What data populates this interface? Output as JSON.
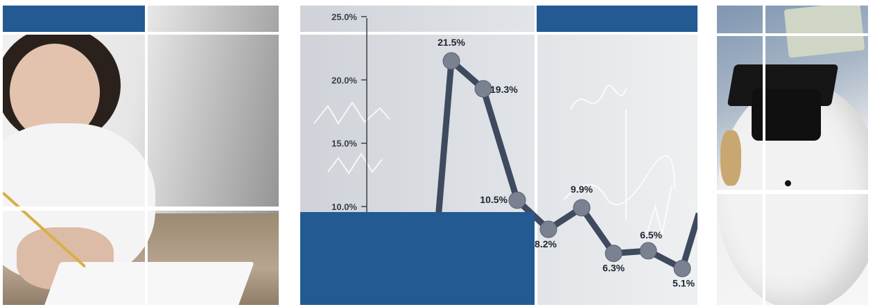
{
  "chart_data": {
    "type": "line",
    "y_ticks": [
      "25.0%",
      "20.0%",
      "15.0%",
      "10.0%"
    ],
    "points": [
      {
        "label": "21.5%",
        "y": 21.5
      },
      {
        "label": "19.3%",
        "y": 19.3
      },
      {
        "label": "10.5%",
        "y": 10.5
      },
      {
        "label": "8.2%",
        "y": 8.2
      },
      {
        "label": "9.9%",
        "y": 9.9
      },
      {
        "label": "6.3%",
        "y": 6.3
      },
      {
        "label": "6.5%",
        "y": 6.5
      },
      {
        "label": "5.1%",
        "y": 5.1
      }
    ],
    "line_color": "#3e4a5e",
    "marker_color": "#7a8190"
  },
  "colors": {
    "accent_blue": "#235a92"
  }
}
